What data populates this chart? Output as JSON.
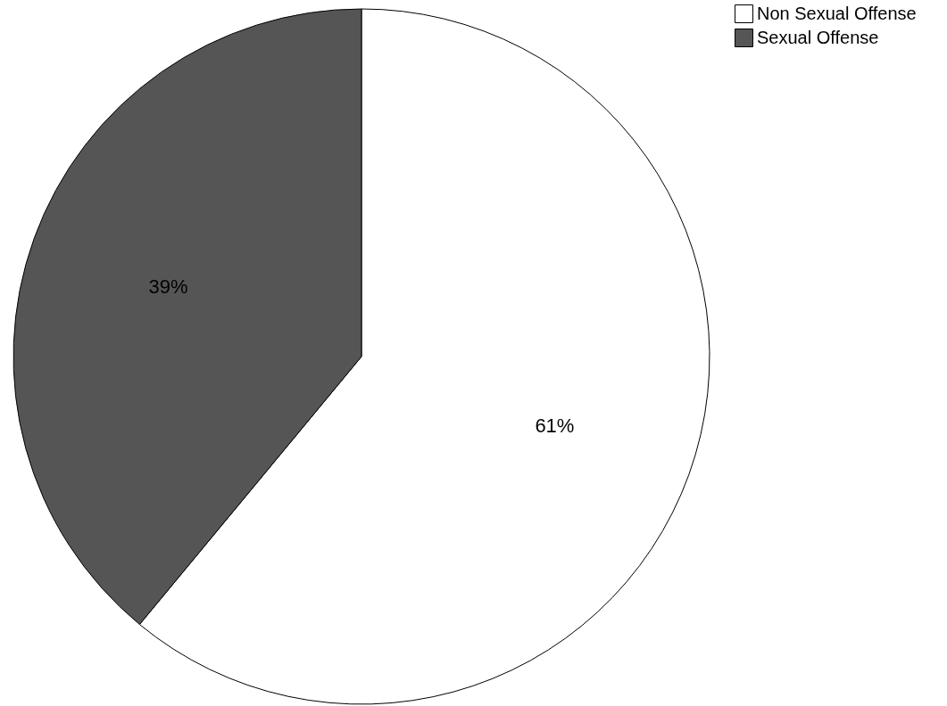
{
  "chart_data": {
    "type": "pie",
    "categories": [
      "Non Sexual Offense",
      "Sexual Offense"
    ],
    "values": [
      61,
      39
    ],
    "colors": [
      "#ffffff",
      "#555555"
    ],
    "value_labels": [
      "61%",
      "39%"
    ],
    "legend": "top right"
  }
}
